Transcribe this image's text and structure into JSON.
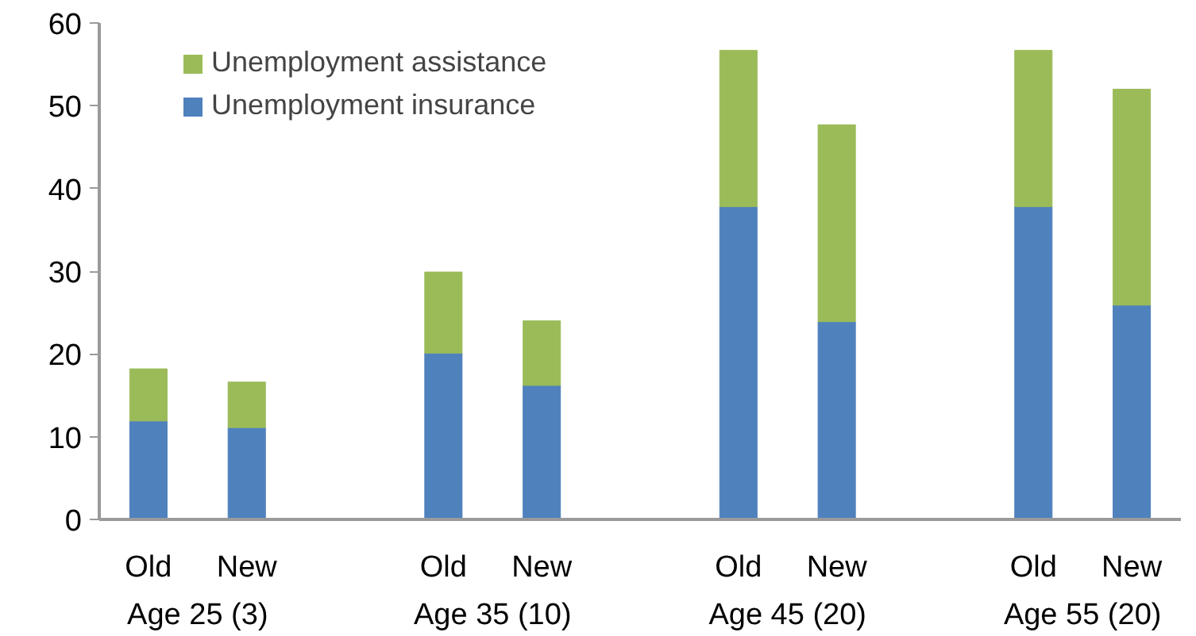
{
  "chart_data": {
    "type": "bar",
    "stacked": true,
    "categories": [
      "Old",
      "New",
      null,
      "Old",
      "New",
      null,
      "Old",
      "New",
      null,
      "Old",
      "New"
    ],
    "series": [
      {
        "name": "Unemployment insurance",
        "color": "#4f81bd",
        "values": [
          11.9,
          11.1,
          null,
          20.1,
          16.2,
          null,
          37.8,
          23.9,
          null,
          37.8,
          25.9
        ]
      },
      {
        "name": "Unemployment assistance",
        "color": "#9bbb59",
        "values": [
          6.3,
          5.5,
          null,
          9.8,
          7.8,
          null,
          18.9,
          23.8,
          null,
          18.9,
          26.1
        ]
      }
    ],
    "annotations": [
      "Age 25 (3)",
      "Age 35 (10)",
      "Age 45 (20)",
      "Age 55 (20)"
    ],
    "ylim": [
      0,
      60
    ],
    "yticks": [
      0,
      10,
      20,
      30,
      40,
      50,
      60
    ],
    "grid": false,
    "legend": "top left"
  }
}
